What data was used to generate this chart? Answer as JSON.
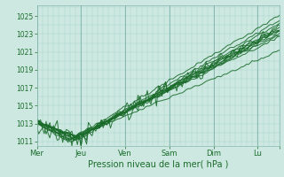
{
  "xlabel": "Pression niveau de la mer( hPa )",
  "background_color": "#cce8e0",
  "grid_color_minor": "#aad4cc",
  "grid_color_major": "#88b8b0",
  "line_color": "#1a6b2a",
  "tick_label_color": "#1a6b2a",
  "ylim": [
    1010.5,
    1026.2
  ],
  "yticks": [
    1011,
    1013,
    1015,
    1017,
    1019,
    1021,
    1023,
    1025
  ],
  "day_positions": [
    0,
    24,
    48,
    72,
    96,
    120,
    132
  ],
  "day_labels": [
    "Mer",
    "Jeu",
    "Ven",
    "Sam",
    "Dim",
    "Lu"
  ],
  "num_hours": 132
}
